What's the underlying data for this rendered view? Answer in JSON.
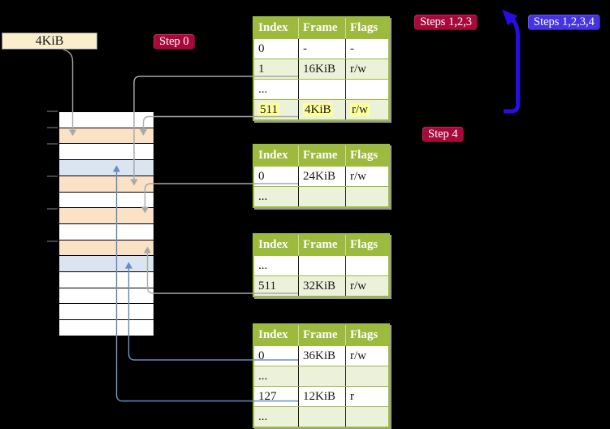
{
  "page_size_box": {
    "label": "4KiB"
  },
  "badges": {
    "step0": {
      "label": "Step 0",
      "color": "#a60a3c"
    },
    "steps123": {
      "label": "Steps 1,2,3",
      "color": "#a60a3c"
    },
    "steps1234": {
      "label": "Steps 1,2,3,4",
      "color": "#4434e4"
    },
    "step4": {
      "label": "Step 4",
      "color": "#a60a3c"
    }
  },
  "tables": [
    {
      "name": "page-table-1",
      "headers": [
        "Index",
        "Frame",
        "Flags"
      ],
      "rows": [
        {
          "cells": [
            "0",
            "-",
            "-"
          ]
        },
        {
          "cells": [
            "1",
            "16KiB",
            "r/w"
          ]
        },
        {
          "cells": [
            "...",
            "",
            ""
          ]
        },
        {
          "cells": [
            "511",
            "4KiB",
            "r/w"
          ],
          "highlight": true
        }
      ]
    },
    {
      "name": "page-table-2",
      "headers": [
        "Index",
        "Frame",
        "Flags"
      ],
      "rows": [
        {
          "cells": [
            "0",
            "24KiB",
            "r/w"
          ]
        },
        {
          "cells": [
            "...",
            "",
            ""
          ]
        }
      ]
    },
    {
      "name": "page-table-3",
      "headers": [
        "Index",
        "Frame",
        "Flags"
      ],
      "rows": [
        {
          "cells": [
            "...",
            "",
            ""
          ]
        },
        {
          "cells": [
            "511",
            "32KiB",
            "r/w"
          ]
        }
      ]
    },
    {
      "name": "page-table-4",
      "headers": [
        "Index",
        "Frame",
        "Flags"
      ],
      "rows": [
        {
          "cells": [
            "0",
            "36KiB",
            "r/w"
          ]
        },
        {
          "cells": [
            "...",
            "",
            ""
          ]
        },
        {
          "cells": [
            "127",
            "12KiB",
            "r"
          ]
        },
        {
          "cells": [
            "...",
            "",
            ""
          ]
        }
      ]
    }
  ],
  "memory_column": {
    "rows": [
      "white",
      "peach",
      "white",
      "blue",
      "peach",
      "white",
      "peach",
      "white",
      "peach",
      "blue",
      "white",
      "white",
      "white",
      "white"
    ]
  },
  "connectors": [
    {
      "id": "size-to-frame",
      "from": "page-size-label",
      "to": "memory-row-2",
      "style": "gray"
    },
    {
      "id": "pt1-idx1",
      "from": "pt1-index-1-16KiB",
      "to": "memory-row-5",
      "style": "gray"
    },
    {
      "id": "pt1-idx511",
      "from": "pt1-index-511-4KiB",
      "to": "memory-row-2",
      "style": "gray"
    },
    {
      "id": "pt2-idx0",
      "from": "pt2-index-0-24KiB",
      "to": "memory-row-7",
      "style": "gray"
    },
    {
      "id": "pt3-idx511",
      "from": "pt3-index-511-32KiB",
      "to": "memory-row-9",
      "style": "gray"
    },
    {
      "id": "pt4-idx0",
      "from": "pt4-index-0-36KiB",
      "to": "memory-row-10",
      "style": "blue"
    },
    {
      "id": "pt4-idx127",
      "from": "pt4-index-127-12KiB",
      "to": "memory-row-4",
      "style": "blue"
    },
    {
      "id": "steps-loop",
      "from": "below-steps-badges",
      "to": "page-table-1",
      "style": "big-blue"
    }
  ],
  "colors": {
    "header_green": "#9cba3d",
    "row_green": "#ecf1da",
    "peach": "#fbe2c7",
    "blue_row": "#dbe5f1",
    "highlight_yellow": "#ffff9c",
    "gray_line": "#a8a8a8",
    "blue_line": "#6b8cbe",
    "big_arrow_blue": "#2a0ce8",
    "badge_red": "#a60a3c",
    "badge_blue": "#4434e4",
    "box_beige": "#fbeecd"
  }
}
